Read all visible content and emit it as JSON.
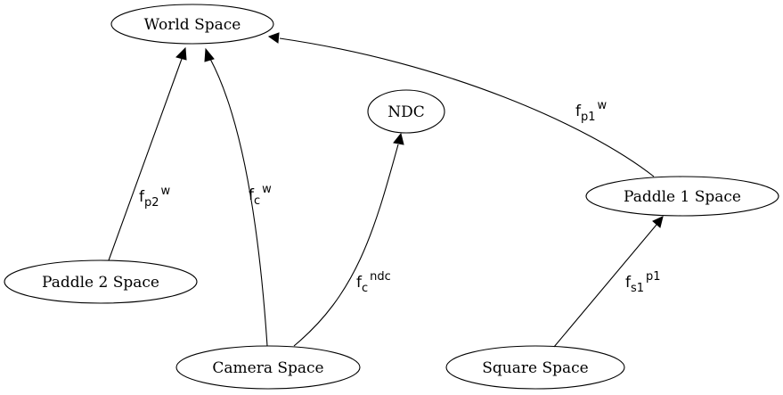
{
  "nodes": {
    "world": "World Space",
    "ndc": "NDC",
    "paddle1": "Paddle 1 Space",
    "paddle2": "Paddle 2 Space",
    "camera": "Camera Space",
    "square": "Square Space"
  },
  "edges": {
    "paddle2_to_world": {
      "base": "f",
      "sub": "p2",
      "sup": "w"
    },
    "camera_to_world": {
      "base": "f",
      "sub": "c",
      "sup": "w"
    },
    "camera_to_ndc": {
      "base": "f",
      "sub": "c",
      "sup": "ndc"
    },
    "paddle1_to_world": {
      "base": "f",
      "sub": "p1",
      "sup": "w"
    },
    "square_to_paddle1": {
      "base": "f",
      "sub": "s1",
      "sup": "p1"
    }
  }
}
